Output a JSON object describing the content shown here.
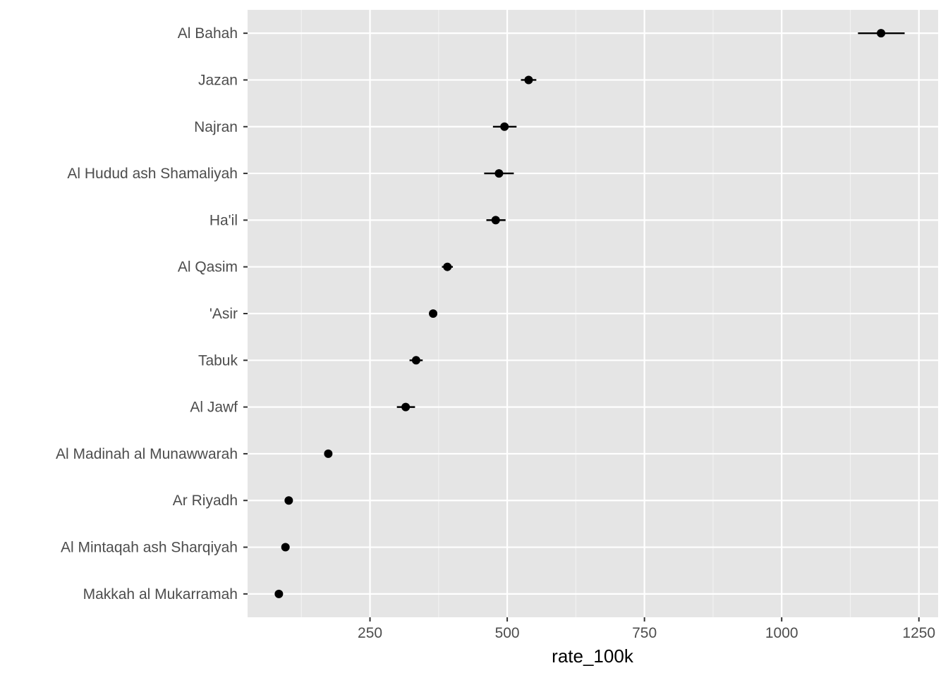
{
  "chart_data": {
    "type": "scatter",
    "title": "",
    "xlabel": "rate_100k",
    "ylabel": "",
    "xlim": [
      27,
      1285
    ],
    "xticks": [
      250,
      500,
      750,
      1000,
      1250
    ],
    "xtick_labels": [
      "250",
      "500",
      "750",
      "1000",
      "1250"
    ],
    "grid": true,
    "legend": "none",
    "colors": {
      "panel_background": "#e5e5e5",
      "grid_major": "#ffffff",
      "grid_minor": "#f2f2f2",
      "points": "#000000",
      "tick_label": "#4d4d4d",
      "axis_title": "#000000"
    },
    "categories": [
      "Al Bahah",
      "Jazan",
      "Najran",
      "Al Hudud ash Shamaliyah",
      "Ha'il",
      "Al Qasim",
      "'Asir",
      "Tabuk",
      "Al Jawf",
      "Al Madinah al Munawwarah",
      "Ar Riyadh",
      "Al Mintaqah ash Sharqiyah",
      "Makkah al Mukarramah"
    ],
    "series": [
      {
        "values": [
          1181,
          539,
          495,
          485,
          479,
          391,
          365,
          334,
          315,
          174,
          102,
          96,
          84
        ],
        "lower": [
          1139,
          525,
          474,
          458,
          462,
          381,
          359,
          322,
          299,
          170,
          100,
          94,
          82
        ],
        "upper": [
          1224,
          553,
          517,
          512,
          497,
          401,
          371,
          346,
          332,
          178,
          104,
          98,
          86
        ]
      }
    ]
  }
}
